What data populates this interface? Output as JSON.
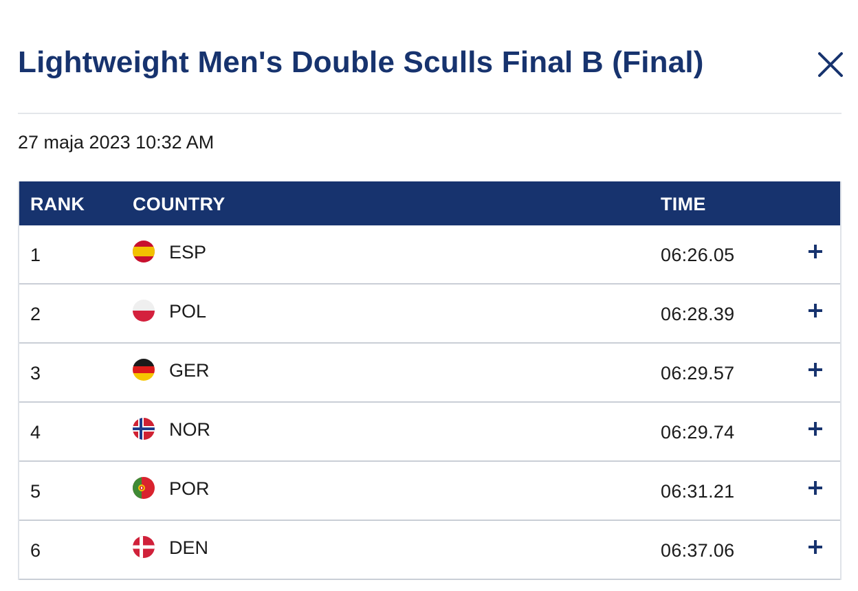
{
  "header": {
    "title": "Lightweight Men's Double Sculls Final B (Final)",
    "close_icon": "close-icon"
  },
  "event": {
    "datetime": "27 maja 2023 10:32 AM"
  },
  "colors": {
    "brand_navy": "#17336e",
    "divider": "#e3e6ea",
    "row_border": "#c9ced6"
  },
  "results": {
    "columns": [
      "RANK",
      "COUNTRY",
      "TIME"
    ],
    "rows": [
      {
        "rank": "1",
        "country": "ESP",
        "flag": "flag-esp-icon",
        "time": "06:26.05",
        "expand_icon": "plus-icon"
      },
      {
        "rank": "2",
        "country": "POL",
        "flag": "flag-pol-icon",
        "time": "06:28.39",
        "expand_icon": "plus-icon"
      },
      {
        "rank": "3",
        "country": "GER",
        "flag": "flag-ger-icon",
        "time": "06:29.57",
        "expand_icon": "plus-icon"
      },
      {
        "rank": "4",
        "country": "NOR",
        "flag": "flag-nor-icon",
        "time": "06:29.74",
        "expand_icon": "plus-icon"
      },
      {
        "rank": "5",
        "country": "POR",
        "flag": "flag-por-icon",
        "time": "06:31.21",
        "expand_icon": "plus-icon"
      },
      {
        "rank": "6",
        "country": "DEN",
        "flag": "flag-den-icon",
        "time": "06:37.06",
        "expand_icon": "plus-icon"
      }
    ]
  }
}
